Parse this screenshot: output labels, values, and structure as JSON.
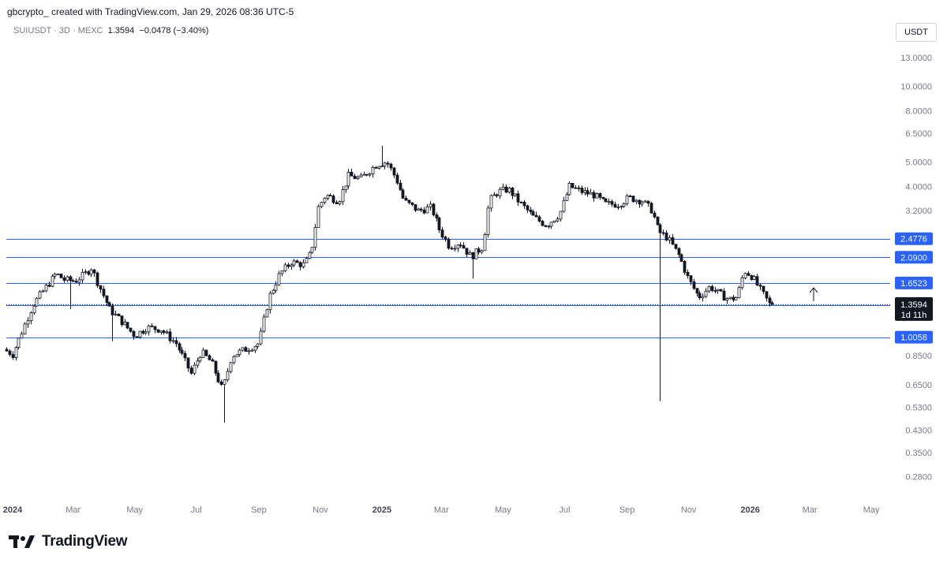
{
  "header": {
    "credit": "gbcrypto_ created with TradingView.com, Jan 29, 2026 08:36 UTC-5",
    "symbol": "SUIUSDT · 3D · MEXC",
    "last": "1.3594",
    "change": "−0.0478 (−3.40%)"
  },
  "unit_label": "USDT",
  "brand": {
    "name": "TradingView",
    "icon": "tradingview-logo-icon"
  },
  "colors": {
    "line": "#2962ff",
    "candle": "#131722",
    "badge": "#2962ff",
    "last_badge": "#131722"
  },
  "chart_data": {
    "type": "candlestick",
    "scale": "log",
    "ylim": [
      0.23,
      16.5
    ],
    "y_ticks": [
      "13.0000",
      "10.0000",
      "8.0000",
      "6.5000",
      "5.0000",
      "4.0000",
      "3.2000",
      "0.8500",
      "0.6500",
      "0.5300",
      "0.4300",
      "0.3500",
      "0.2800"
    ],
    "x_ticks": [
      {
        "label": "2024",
        "date": "2024-01-01",
        "bold": true
      },
      {
        "label": "Mar",
        "date": "2024-03-01"
      },
      {
        "label": "May",
        "date": "2024-05-01"
      },
      {
        "label": "Jul",
        "date": "2024-07-01"
      },
      {
        "label": "Sep",
        "date": "2024-09-01"
      },
      {
        "label": "Nov",
        "date": "2024-11-01"
      },
      {
        "label": "2025",
        "date": "2025-01-01",
        "bold": true
      },
      {
        "label": "Mar",
        "date": "2025-03-01"
      },
      {
        "label": "May",
        "date": "2025-05-01"
      },
      {
        "label": "Jul",
        "date": "2025-07-01"
      },
      {
        "label": "Sep",
        "date": "2025-09-01"
      },
      {
        "label": "Nov",
        "date": "2025-11-01"
      },
      {
        "label": "2026",
        "date": "2026-01-01",
        "bold": true
      },
      {
        "label": "Mar",
        "date": "2026-03-01"
      },
      {
        "label": "May",
        "date": "2026-05-01"
      }
    ],
    "x_range": [
      "2024-01-01",
      "2026-05-26"
    ],
    "horizontal_levels": [
      {
        "price": 2.4776,
        "label": "2.4776"
      },
      {
        "price": 2.09,
        "label": "2.0900"
      },
      {
        "price": 1.6523,
        "label": "1.6523"
      },
      {
        "price": 1.344,
        "label": "1.3440"
      },
      {
        "price": 1.0058,
        "label": "1.0058"
      }
    ],
    "last_price": {
      "price": 1.3594,
      "label": "1.3594",
      "countdown": "1d 11h"
    },
    "anchors": [
      [
        "2024-01-01",
        0.9
      ],
      [
        "2024-01-10",
        0.86
      ],
      [
        "2024-01-20",
        1.08
      ],
      [
        "2024-01-30",
        1.35
      ],
      [
        "2024-02-10",
        1.55
      ],
      [
        "2024-02-22",
        1.8
      ],
      [
        "2024-03-01",
        1.7
      ],
      [
        "2024-03-12",
        1.68
      ],
      [
        "2024-03-22",
        1.8
      ],
      [
        "2024-03-28",
        1.9
      ],
      [
        "2024-04-05",
        1.6
      ],
      [
        "2024-04-15",
        1.3
      ],
      [
        "2024-04-28",
        1.15
      ],
      [
        "2024-05-10",
        1.02
      ],
      [
        "2024-05-22",
        1.1
      ],
      [
        "2024-06-05",
        1.08
      ],
      [
        "2024-06-20",
        0.95
      ],
      [
        "2024-07-05",
        0.72
      ],
      [
        "2024-07-15",
        0.88
      ],
      [
        "2024-07-25",
        0.8
      ],
      [
        "2024-08-05",
        0.62
      ],
      [
        "2024-08-14",
        0.85
      ],
      [
        "2024-08-28",
        0.9
      ],
      [
        "2024-09-10",
        0.95
      ],
      [
        "2024-09-20",
        1.45
      ],
      [
        "2024-10-01",
        1.8
      ],
      [
        "2024-10-12",
        2.0
      ],
      [
        "2024-10-25",
        1.95
      ],
      [
        "2024-11-01",
        2.2
      ],
      [
        "2024-11-08",
        3.3
      ],
      [
        "2024-11-15",
        3.7
      ],
      [
        "2024-11-28",
        3.5
      ],
      [
        "2024-12-08",
        4.4
      ],
      [
        "2024-12-20",
        4.3
      ],
      [
        "2025-01-05",
        4.9
      ],
      [
        "2025-01-15",
        5.0
      ],
      [
        "2025-01-24",
        4.3
      ],
      [
        "2025-02-01",
        3.5
      ],
      [
        "2025-02-15",
        3.2
      ],
      [
        "2025-02-28",
        3.3
      ],
      [
        "2025-03-08",
        2.7
      ],
      [
        "2025-03-18",
        2.3
      ],
      [
        "2025-03-28",
        2.4
      ],
      [
        "2025-04-08",
        2.1
      ],
      [
        "2025-04-20",
        2.3
      ],
      [
        "2025-04-26",
        3.5
      ],
      [
        "2025-05-05",
        3.8
      ],
      [
        "2025-05-15",
        3.9
      ],
      [
        "2025-05-28",
        3.4
      ],
      [
        "2025-06-10",
        3.0
      ],
      [
        "2025-06-22",
        2.8
      ],
      [
        "2025-07-05",
        3.1
      ],
      [
        "2025-07-15",
        4.0
      ],
      [
        "2025-07-28",
        3.8
      ],
      [
        "2025-08-08",
        3.7
      ],
      [
        "2025-08-20",
        3.4
      ],
      [
        "2025-09-01",
        3.4
      ],
      [
        "2025-09-12",
        3.6
      ],
      [
        "2025-09-25",
        3.5
      ],
      [
        "2025-10-05",
        3.2
      ],
      [
        "2025-10-11",
        2.65
      ],
      [
        "2025-10-20",
        2.5
      ],
      [
        "2025-11-01",
        2.1
      ],
      [
        "2025-11-10",
        1.7
      ],
      [
        "2025-11-20",
        1.45
      ],
      [
        "2025-12-01",
        1.6
      ],
      [
        "2025-12-10",
        1.5
      ],
      [
        "2025-12-20",
        1.42
      ],
      [
        "2025-12-28",
        1.45
      ],
      [
        "2026-01-04",
        1.85
      ],
      [
        "2026-01-12",
        1.75
      ],
      [
        "2026-01-20",
        1.55
      ],
      [
        "2026-01-29",
        1.36
      ]
    ],
    "spikes": [
      {
        "date": "2024-03-05",
        "low": 1.3
      },
      {
        "date": "2024-04-14",
        "low": 0.97
      },
      {
        "date": "2024-08-05",
        "low": 0.46
      },
      {
        "date": "2025-01-06",
        "high": 5.8
      },
      {
        "date": "2025-04-07",
        "low": 1.72
      },
      {
        "date": "2025-10-10",
        "low": 0.56
      }
    ]
  }
}
